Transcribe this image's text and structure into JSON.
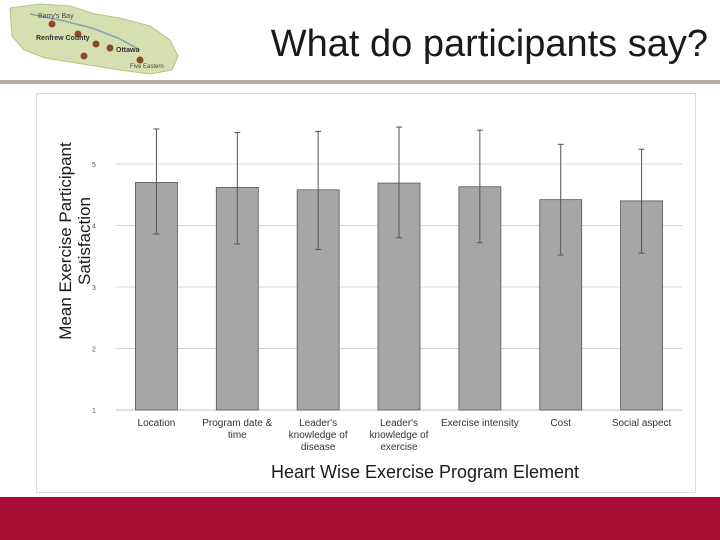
{
  "slide": {
    "title": "What do participants say?"
  },
  "logo": {
    "places": [
      "Barry's Bay",
      "Renfrew County",
      "Ottawa",
      "Five Eastern"
    ]
  },
  "colors": {
    "footer": "#a80d35",
    "bar": "#a6a6a6",
    "logo_map": "#d6dfb0"
  },
  "chart_data": {
    "type": "bar",
    "categories": [
      "Location",
      "Program date & time",
      "Leader's knowledge of disease",
      "Leader's knowledge of exercise",
      "Exercise intensity",
      "Cost",
      "Social aspect"
    ],
    "values": [
      4.7,
      4.62,
      4.58,
      4.69,
      4.63,
      4.42,
      4.4
    ],
    "error_low": [
      3.86,
      3.7,
      3.61,
      3.8,
      3.72,
      3.52,
      3.55
    ],
    "error_high": [
      5.57,
      5.51,
      5.53,
      5.6,
      5.55,
      5.32,
      5.24
    ],
    "ylim": [
      1,
      5.5
    ],
    "yticks": [
      1,
      2,
      3,
      4,
      5
    ],
    "ylabel_line1": "Mean Exercise Participant",
    "ylabel_line2": "Satisfaction",
    "xlabel": "Heart Wise Exercise Program Element",
    "grid": true
  }
}
